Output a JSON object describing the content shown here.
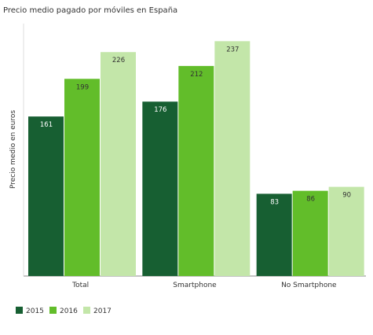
{
  "chart_data": {
    "type": "bar",
    "title": "Precio medio pagado por móviles en España",
    "xlabel": "",
    "ylabel": "Precio medio en euros",
    "categories": [
      "Total",
      "Smartphone",
      "No Smartphone"
    ],
    "series": [
      {
        "name": "2015",
        "values": [
          161,
          176,
          83
        ],
        "color": "#175f32",
        "label_color": "#ffffff"
      },
      {
        "name": "2016",
        "values": [
          199,
          212,
          86
        ],
        "color": "#62bd2a",
        "label_color": "#333333"
      },
      {
        "name": "2017",
        "values": [
          226,
          237,
          90
        ],
        "color": "#c3e6a9",
        "label_color": "#333333"
      }
    ],
    "ylim": [
      0,
      240
    ],
    "grid": false,
    "legend": "bottom-left",
    "data_labels": true
  }
}
